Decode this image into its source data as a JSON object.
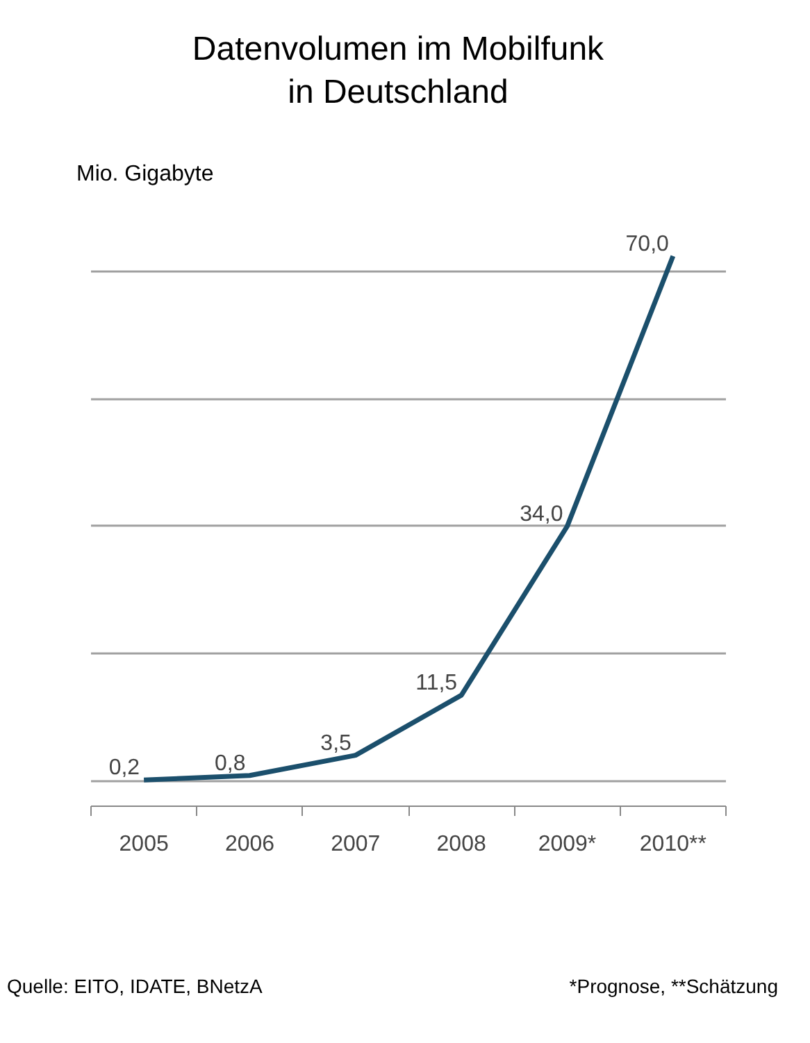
{
  "chart_data": {
    "type": "line",
    "title": "Datenvolumen im Mobilfunk\nin Deutschland",
    "ylabel": "Mio. Gigabyte",
    "categories": [
      "2005",
      "2006",
      "2007",
      "2008",
      "2009*",
      "2010**"
    ],
    "series": [
      {
        "color": "#1b4f6c",
        "values": [
          0.2,
          0.8,
          3.5,
          11.5,
          34.0,
          70.0
        ],
        "value_labels": [
          "0,2",
          "0,8",
          "3,5",
          "11,5",
          "34,0",
          "70,0"
        ]
      }
    ],
    "yticks": [
      {
        "value": 0,
        "label": null
      },
      {
        "value": 17,
        "label": null
      },
      {
        "value": 34,
        "label": null
      },
      {
        "value": 51,
        "label": null
      },
      {
        "value": 68,
        "label": null
      }
    ],
    "grid": "y",
    "tick_labels": "x",
    "marker": "none",
    "line_style": "solid",
    "annotations": [
      "Quelle: EITO, IDATE, BNetzA",
      "*Prognose, **Schätzung"
    ]
  }
}
